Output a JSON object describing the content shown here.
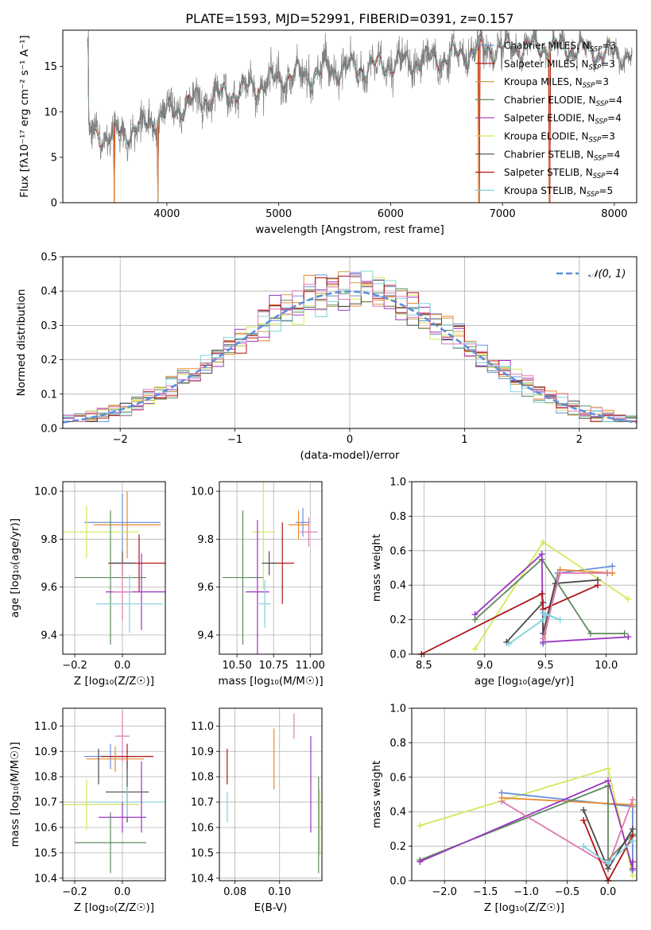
{
  "figure_title": "PLATE=1593, MJD=52991, FIBERID=0391, z=0.157",
  "colors": {
    "blue": "#6a8fd8",
    "orange": "#e8892e",
    "olive": "#c9a14a",
    "green": "#5f8a5f",
    "purple": "#9b35c0",
    "yellow": "#d3e85a",
    "dark": "#4a4a4a",
    "red": "#b01515",
    "cyan": "#7fd3dc",
    "pink": "#e07ab4",
    "data_gray": "#808080",
    "normal_curve": "#5b8fd9"
  },
  "chart_data": [
    {
      "id": "spectrum",
      "type": "line",
      "title": "PLATE=1593, MJD=52991, FIBERID=0391, z=0.157",
      "xlabel": "wavelength [Angstrom, rest frame]",
      "ylabel": "Flux [fλ10⁻¹⁷ erg cm⁻² s⁻¹ A⁻¹]",
      "xlim": [
        3070,
        8200
      ],
      "ylim": [
        0,
        19
      ],
      "xticks": [
        "4000",
        "5000",
        "6000",
        "7000",
        "8000"
      ],
      "yticks": [
        "0",
        "5",
        "10",
        "15"
      ],
      "legend_position": "right",
      "legend": [
        {
          "label": "Chabrier MILES, N",
          "sub": "SSP",
          "suffix": "=3",
          "color": "blue"
        },
        {
          "label": "Salpeter MILES, N",
          "sub": "SSP",
          "suffix": "=3",
          "color": "red"
        },
        {
          "label": "Kroupa MILES, N",
          "sub": "SSP",
          "suffix": "=3",
          "color": "olive"
        },
        {
          "label": "Chabrier ELODIE, N",
          "sub": "SSP",
          "suffix": "=4",
          "color": "green"
        },
        {
          "label": "Salpeter ELODIE, N",
          "sub": "SSP",
          "suffix": "=4",
          "color": "purple"
        },
        {
          "label": "Kroupa ELODIE, N",
          "sub": "SSP",
          "suffix": "=3",
          "color": "yellow"
        },
        {
          "label": "Chabrier STELIB, N",
          "sub": "SSP",
          "suffix": "=4",
          "color": "dark"
        },
        {
          "label": "Salpeter STELIB, N",
          "sub": "SSP",
          "suffix": "=4",
          "color": "red"
        },
        {
          "label": "Kroupa STELIB, N",
          "sub": "SSP",
          "suffix": "=5",
          "color": "cyan"
        }
      ],
      "continuum": [
        [
          3300,
          7.8
        ],
        [
          3450,
          7.2
        ],
        [
          3700,
          8.0
        ],
        [
          3950,
          9.5
        ],
        [
          4200,
          11.0
        ],
        [
          4500,
          11.8
        ],
        [
          4800,
          12.8
        ],
        [
          5100,
          14.0
        ],
        [
          5400,
          14.5
        ],
        [
          5800,
          15.0
        ],
        [
          6200,
          15.5
        ],
        [
          6500,
          16.0
        ],
        [
          6800,
          16.8
        ],
        [
          7000,
          17.0
        ],
        [
          7300,
          17.2
        ],
        [
          7600,
          17.0
        ],
        [
          7900,
          16.5
        ],
        [
          8150,
          16.3
        ]
      ],
      "drops": [
        [
          3530,
          0
        ],
        [
          3920,
          0
        ],
        [
          6790,
          0
        ],
        [
          7420,
          0
        ]
      ]
    },
    {
      "id": "residuals",
      "type": "histogram",
      "xlabel": "(data-model)/error",
      "ylabel": "Normed distribution",
      "xlim": [
        -2.5,
        2.5
      ],
      "ylim": [
        0,
        0.5
      ],
      "xticks": [
        "−2",
        "−1",
        "0",
        "1",
        "2"
      ],
      "yticks": [
        "0.0",
        "0.1",
        "0.2",
        "0.3",
        "0.4",
        "0.5"
      ],
      "legend": [
        {
          "label": "𝒩(0, 1)",
          "color": "normal_curve"
        }
      ],
      "legend_position": "top-right",
      "bin_width": 0.1
    },
    {
      "id": "age_vs_Z",
      "type": "errorbar",
      "xlabel": "Z [log₁₀(Z/Z☉)]",
      "ylabel": "age  [log₁₀(age/yr)]",
      "xlim": [
        -0.25,
        0.18
      ],
      "ylim": [
        9.32,
        10.04
      ],
      "xticks": [
        "−0.2",
        "0.0"
      ],
      "yticks": [
        "9.4",
        "9.6",
        "9.8",
        "10.0"
      ],
      "points": [
        {
          "color": "blue",
          "x": 0.0,
          "xerr": 0.16,
          "y": 9.87,
          "yerr": 0.12
        },
        {
          "color": "orange",
          "x": 0.02,
          "xerr": 0.14,
          "y": 9.86,
          "yerr": 0.14
        },
        {
          "color": "yellow",
          "x": -0.15,
          "xerr": 0.22,
          "y": 9.83,
          "yerr": 0.11
        },
        {
          "color": "red",
          "x": 0.07,
          "xerr": 0.13,
          "y": 9.7,
          "yerr": 0.12
        },
        {
          "color": "dark",
          "x": 0.0,
          "xerr": 0.05,
          "y": 9.7,
          "yerr": 0.05
        },
        {
          "color": "green",
          "x": -0.05,
          "xerr": 0.15,
          "y": 9.64,
          "yerr": 0.28
        },
        {
          "color": "purple",
          "x": 0.08,
          "xerr": 0.15,
          "y": 9.58,
          "yerr": 0.16
        },
        {
          "color": "pink",
          "x": 0.0,
          "xerr": 0.04,
          "y": 9.58,
          "yerr": 0.12
        },
        {
          "color": "cyan",
          "x": 0.03,
          "xerr": 0.14,
          "y": 9.53,
          "yerr": 0.12
        }
      ]
    },
    {
      "id": "age_vs_mass",
      "type": "errorbar",
      "xlabel": "mass [log₁₀(M/M☉)]",
      "ylabel": "",
      "xlim": [
        10.38,
        11.08
      ],
      "ylim": [
        9.32,
        10.04
      ],
      "xticks": [
        "10.50",
        "10.75",
        "11.00"
      ],
      "yticks": [
        "9.4",
        "9.6",
        "9.8",
        "10.0"
      ],
      "points": [
        {
          "color": "blue",
          "x": 10.95,
          "xerr": 0.05,
          "y": 9.87,
          "yerr": 0.06
        },
        {
          "color": "orange",
          "x": 10.92,
          "xerr": 0.07,
          "y": 9.86,
          "yerr": 0.06
        },
        {
          "color": "pink",
          "x": 10.99,
          "xerr": 0.06,
          "y": 9.83,
          "yerr": 0.06
        },
        {
          "color": "yellow",
          "x": 10.68,
          "xerr": 0.08,
          "y": 9.83,
          "yerr": 0.24
        },
        {
          "color": "red",
          "x": 10.81,
          "xerr": 0.08,
          "y": 9.7,
          "yerr": 0.17
        },
        {
          "color": "dark",
          "x": 10.72,
          "xerr": 0.05,
          "y": 9.7,
          "yerr": 0.05
        },
        {
          "color": "green",
          "x": 10.54,
          "xerr": 0.14,
          "y": 9.64,
          "yerr": 0.28
        },
        {
          "color": "purple",
          "x": 10.64,
          "xerr": 0.08,
          "y": 9.58,
          "yerr": 0.3
        },
        {
          "color": "cyan",
          "x": 10.69,
          "xerr": 0.04,
          "y": 9.53,
          "yerr": 0.1
        }
      ]
    },
    {
      "id": "weight_vs_age",
      "type": "line",
      "xlabel": "age  [log₁₀(age/yr)]",
      "ylabel": "mass weight",
      "xlim": [
        8.4,
        10.25
      ],
      "ylim": [
        0,
        1
      ],
      "xticks": [
        "8.5",
        "9.0",
        "9.5",
        "10.0"
      ],
      "yticks": [
        "0.0",
        "0.2",
        "0.4",
        "0.6",
        "0.8",
        "1.0"
      ],
      "series": [
        {
          "color": "blue",
          "points": [
            [
              9.48,
              0.06
            ],
            [
              9.6,
              0.47
            ],
            [
              10.05,
              0.51
            ]
          ]
        },
        {
          "color": "orange",
          "points": [
            [
              9.48,
              0.07
            ],
            [
              9.62,
              0.49
            ],
            [
              10.05,
              0.47
            ]
          ]
        },
        {
          "color": "yellow",
          "points": [
            [
              8.92,
              0.03
            ],
            [
              9.48,
              0.65
            ],
            [
              10.18,
              0.32
            ]
          ]
        },
        {
          "color": "green",
          "points": [
            [
              8.92,
              0.2
            ],
            [
              9.47,
              0.55
            ],
            [
              9.87,
              0.12
            ],
            [
              10.15,
              0.12
            ]
          ]
        },
        {
          "color": "purple",
          "points": [
            [
              8.92,
              0.23
            ],
            [
              9.47,
              0.58
            ],
            [
              9.48,
              0.07
            ],
            [
              10.18,
              0.1
            ]
          ]
        },
        {
          "color": "dark",
          "points": [
            [
              9.18,
              0.07
            ],
            [
              9.48,
              0.3
            ],
            [
              9.48,
              0.12
            ],
            [
              9.58,
              0.41
            ],
            [
              9.93,
              0.43
            ]
          ]
        },
        {
          "color": "red",
          "points": [
            [
              8.48,
              0.0
            ],
            [
              9.47,
              0.35
            ],
            [
              9.48,
              0.26
            ],
            [
              9.93,
              0.4
            ]
          ]
        },
        {
          "color": "pink",
          "points": [
            [
              9.48,
              0.09
            ],
            [
              9.62,
              0.47
            ],
            [
              10.01,
              0.47
            ]
          ]
        },
        {
          "color": "cyan",
          "points": [
            [
              9.2,
              0.06
            ],
            [
              9.48,
              0.2
            ],
            [
              9.5,
              0.23
            ],
            [
              9.62,
              0.2
            ],
            [
              9.48,
              0.24
            ]
          ]
        }
      ]
    },
    {
      "id": "mass_vs_Z",
      "type": "errorbar",
      "xlabel": "Z [log₁₀(Z/Z☉)]",
      "ylabel": "mass [log₁₀(M/M☉)]",
      "xlim": [
        -0.25,
        0.18
      ],
      "ylim": [
        10.39,
        11.07
      ],
      "xticks": [
        "−0.2",
        "0.0"
      ],
      "yticks": [
        "10.4",
        "10.5",
        "10.6",
        "10.7",
        "10.8",
        "10.9",
        "11.0"
      ],
      "points": [
        {
          "color": "pink",
          "x": 0.0,
          "xerr": 0.03,
          "y": 10.96,
          "yerr": 0.1
        },
        {
          "color": "blue",
          "x": -0.05,
          "xerr": 0.11,
          "y": 10.88,
          "yerr": 0.05
        },
        {
          "color": "red",
          "x": 0.02,
          "xerr": 0.11,
          "y": 10.88,
          "yerr": 0.05
        },
        {
          "color": "orange",
          "x": -0.03,
          "xerr": 0.12,
          "y": 10.87,
          "yerr": 0.05
        },
        {
          "color": "dark",
          "x": -0.1,
          "xerr": 0.0,
          "y": 10.84,
          "yerr": 0.07
        },
        {
          "color": "dark",
          "x": 0.02,
          "xerr": 0.09,
          "y": 10.74,
          "yerr": 0.12
        },
        {
          "color": "yellow",
          "x": -0.15,
          "xerr": 0.22,
          "y": 10.69,
          "yerr": 0.1
        },
        {
          "color": "cyan",
          "x": 0.02,
          "xerr": 0.15,
          "y": 10.7,
          "yerr": 0.06
        },
        {
          "color": "purple",
          "x": 0.0,
          "xerr": 0.1,
          "y": 10.64,
          "yerr": 0.06
        },
        {
          "color": "purple",
          "x": 0.08,
          "xerr": 0.0,
          "y": 10.72,
          "yerr": 0.14
        },
        {
          "color": "green",
          "x": -0.05,
          "xerr": 0.15,
          "y": 10.54,
          "yerr": 0.12
        }
      ]
    },
    {
      "id": "mass_vs_ebv",
      "type": "errorbar",
      "xlabel": "E(B-V)",
      "ylabel": "",
      "xlim": [
        0.073,
        0.119
      ],
      "ylim": [
        10.39,
        11.07
      ],
      "xticks": [
        "0.08",
        "0.10"
      ],
      "yticks": [
        "10.4",
        "10.5",
        "10.6",
        "10.7",
        "10.8",
        "10.9",
        "11.0"
      ],
      "points": [
        {
          "color": "red",
          "x": 0.0765,
          "xerr": 0.0,
          "y": 10.84,
          "yerr": 0.07
        },
        {
          "color": "cyan",
          "x": 0.0765,
          "xerr": 0.0,
          "y": 10.68,
          "yerr": 0.06
        },
        {
          "color": "orange",
          "x": 0.0975,
          "xerr": 0.0,
          "y": 10.87,
          "yerr": 0.12
        },
        {
          "color": "pink",
          "x": 0.1065,
          "xerr": 0.0,
          "y": 11.0,
          "yerr": 0.05
        },
        {
          "color": "purple",
          "x": 0.114,
          "xerr": 0.0,
          "y": 10.77,
          "yerr": 0.19
        },
        {
          "color": "green",
          "x": 0.1175,
          "xerr": 0.0,
          "y": 10.61,
          "yerr": 0.19
        },
        {
          "color": "yellow",
          "x": 0.118,
          "xerr": 0.0,
          "y": 10.62,
          "yerr": 0.13
        }
      ]
    },
    {
      "id": "weight_vs_Z",
      "type": "line",
      "xlabel": "Z [log₁₀(Z/Z☉)]",
      "ylabel": "mass weight",
      "xlim": [
        -2.4,
        0.35
      ],
      "ylim": [
        0,
        1
      ],
      "xticks": [
        "−2.0",
        "−1.5",
        "−1.0",
        "−0.5",
        "0.0"
      ],
      "yticks": [
        "0.0",
        "0.2",
        "0.4",
        "0.6",
        "0.8",
        "1.0"
      ],
      "series": [
        {
          "color": "yellow",
          "points": [
            [
              -2.3,
              0.32
            ],
            [
              0.0,
              0.65
            ],
            [
              0.3,
              0.03
            ]
          ]
        },
        {
          "color": "blue",
          "points": [
            [
              -1.3,
              0.51
            ],
            [
              0.3,
              0.43
            ],
            [
              0.3,
              0.06
            ]
          ]
        },
        {
          "color": "orange",
          "points": [
            [
              -1.3,
              0.48
            ],
            [
              0.3,
              0.44
            ]
          ]
        },
        {
          "color": "green",
          "points": [
            [
              -2.3,
              0.12
            ],
            [
              0.0,
              0.55
            ],
            [
              0.0,
              0.12
            ],
            [
              0.3,
              0.27
            ]
          ]
        },
        {
          "color": "purple",
          "points": [
            [
              -2.3,
              0.11
            ],
            [
              0.0,
              0.58
            ],
            [
              0.3,
              0.07
            ],
            [
              0.3,
              0.11
            ]
          ]
        },
        {
          "color": "pink",
          "points": [
            [
              -1.3,
              0.46
            ],
            [
              0.0,
              0.09
            ],
            [
              0.3,
              0.47
            ]
          ]
        },
        {
          "color": "dark",
          "points": [
            [
              -0.3,
              0.41
            ],
            [
              0.0,
              0.07
            ],
            [
              0.3,
              0.3
            ]
          ]
        },
        {
          "color": "red",
          "points": [
            [
              -0.3,
              0.35
            ],
            [
              0.0,
              0.0
            ],
            [
              0.3,
              0.26
            ]
          ]
        },
        {
          "color": "cyan",
          "points": [
            [
              -0.3,
              0.2
            ],
            [
              0.0,
              0.1
            ],
            [
              0.3,
              0.23
            ]
          ]
        }
      ]
    }
  ]
}
